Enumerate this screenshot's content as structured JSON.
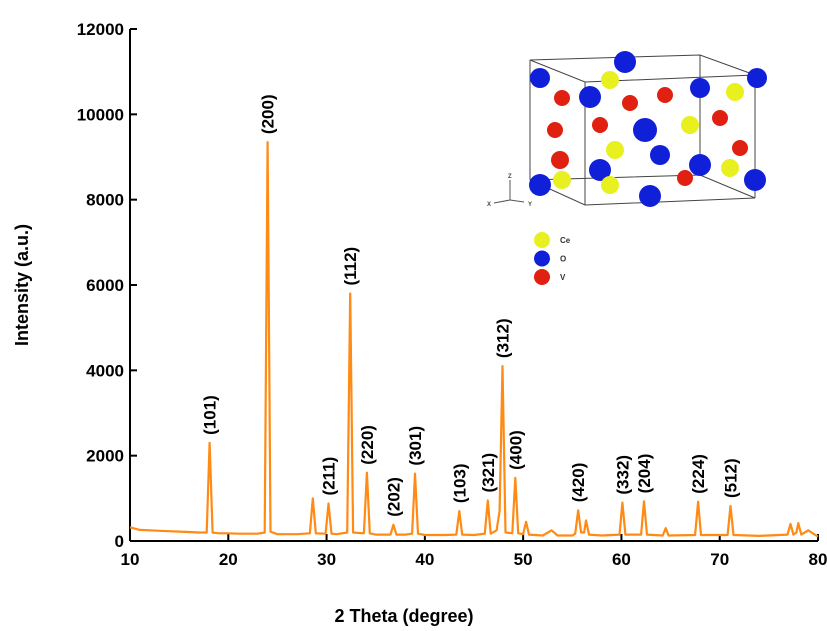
{
  "chart_data": {
    "type": "line",
    "xlabel": "2 Theta (degree)",
    "ylabel": "Intensity (a.u.)",
    "xlim": [
      10,
      80
    ],
    "xticks": [
      10,
      20,
      30,
      40,
      50,
      60,
      70,
      80
    ],
    "ylim": [
      0,
      12000
    ],
    "yticks": [
      0,
      2000,
      4000,
      6000,
      8000,
      10000,
      12000
    ],
    "grid": false,
    "x": [
      10,
      11,
      12,
      13,
      14,
      15,
      16,
      17,
      17.8,
      18.1,
      18.4,
      19,
      20,
      21,
      22,
      23,
      23.7,
      24.0,
      24.3,
      25,
      26,
      27,
      28.3,
      28.6,
      28.9,
      29.9,
      30.2,
      30.5,
      31,
      32.1,
      32.4,
      32.7,
      33.8,
      34.1,
      34.4,
      35,
      36.5,
      36.8,
      37.1,
      38,
      38.7,
      39.0,
      39.3,
      40,
      41,
      42,
      43.2,
      43.5,
      43.8,
      45,
      46.1,
      46.4,
      46.7,
      47.3,
      47.6,
      47.9,
      48.2,
      48.9,
      49.2,
      49.5,
      50.0,
      50.3,
      50.6,
      52,
      52.9,
      53.5,
      55,
      55.3,
      55.6,
      55.9,
      56.2,
      56.4,
      56.7,
      58,
      59.8,
      60.1,
      60.4,
      62.0,
      62.3,
      62.6,
      64.2,
      64.5,
      64.8,
      67.5,
      67.8,
      68.1,
      70.8,
      71.1,
      71.4,
      74,
      76.9,
      77.2,
      77.5,
      77.8,
      78.0,
      78.3,
      79,
      80
    ],
    "series": [
      {
        "color": "#ff8a14",
        "values": [
          320,
          260,
          250,
          240,
          230,
          220,
          210,
          200,
          200,
          2300,
          200,
          180,
          180,
          170,
          170,
          170,
          200,
          9350,
          220,
          160,
          160,
          160,
          180,
          1000,
          180,
          170,
          880,
          170,
          160,
          200,
          5800,
          200,
          180,
          1600,
          180,
          150,
          150,
          380,
          150,
          150,
          170,
          1580,
          170,
          140,
          140,
          140,
          150,
          700,
          150,
          140,
          170,
          950,
          170,
          250,
          700,
          4100,
          200,
          180,
          1480,
          180,
          160,
          450,
          150,
          130,
          250,
          130,
          130,
          170,
          720,
          200,
          200,
          480,
          150,
          130,
          150,
          900,
          150,
          150,
          930,
          150,
          130,
          300,
          130,
          140,
          920,
          140,
          140,
          820,
          140,
          120,
          150,
          400,
          150,
          200,
          420,
          150,
          250,
          100
        ]
      }
    ],
    "annotations": [
      {
        "text": "(101)",
        "x": 18.1,
        "y": 2300
      },
      {
        "text": "(200)",
        "x": 24.0,
        "y": 9350
      },
      {
        "text": "(211)",
        "x": 30.2,
        "y": 880
      },
      {
        "text": "(112)",
        "x": 32.4,
        "y": 5800
      },
      {
        "text": "(220)",
        "x": 34.1,
        "y": 1600
      },
      {
        "text": "(202)",
        "x": 36.8,
        "y": 380
      },
      {
        "text": "(301)",
        "x": 39.0,
        "y": 1580
      },
      {
        "text": "(103)",
        "x": 43.5,
        "y": 700
      },
      {
        "text": "(321)",
        "x": 46.4,
        "y": 950
      },
      {
        "text": "(312)",
        "x": 47.9,
        "y": 4100
      },
      {
        "text": "(400)",
        "x": 49.2,
        "y": 1480
      },
      {
        "text": "(420)",
        "x": 55.6,
        "y": 720
      },
      {
        "text": "(332)",
        "x": 60.1,
        "y": 900
      },
      {
        "text": "(204)",
        "x": 62.3,
        "y": 930
      },
      {
        "text": "(224)",
        "x": 67.8,
        "y": 920
      },
      {
        "text": "(512)",
        "x": 71.1,
        "y": 820
      }
    ],
    "inset": {
      "axes": [
        "Z",
        "X",
        "Y"
      ],
      "legend": [
        {
          "name": "Ce",
          "color": "#e8f020"
        },
        {
          "name": "O",
          "color": "#1020d8"
        },
        {
          "name": "V",
          "color": "#e02010"
        }
      ]
    }
  }
}
